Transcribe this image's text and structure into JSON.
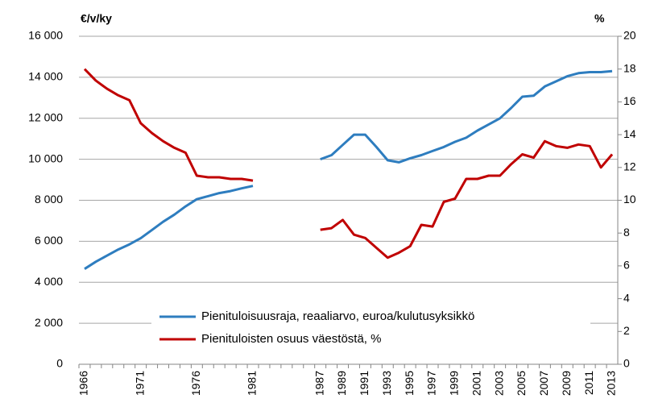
{
  "chart_data": {
    "type": "line",
    "y_label": "€/v/ky",
    "y2_label": "%",
    "categories": [
      "1966",
      null,
      null,
      null,
      null,
      "1971",
      null,
      null,
      null,
      null,
      "1976",
      null,
      null,
      null,
      null,
      "1981",
      null,
      null,
      null,
      null,
      null,
      "1987",
      null,
      "1989",
      null,
      "1991",
      null,
      "1993",
      null,
      "1995",
      null,
      "1997",
      null,
      "1999",
      null,
      "2001",
      null,
      "2003",
      null,
      "2005",
      null,
      "2007",
      null,
      "2009",
      null,
      "2011",
      null,
      "2013"
    ],
    "series": [
      {
        "name": "Pienituloisuusraja, reaaliarvo, euroa/kulutusyksikkö",
        "color": "#2e7dbf",
        "axis": "y",
        "values": [
          4650,
          5000,
          5300,
          5600,
          5850,
          6150,
          6550,
          6950,
          7300,
          7700,
          8050,
          8200,
          8350,
          8450,
          8580,
          8700,
          null,
          null,
          null,
          null,
          null,
          10000,
          10200,
          10700,
          11200,
          11200,
          10600,
          9950,
          9850,
          10050,
          10200,
          10400,
          10600,
          10850,
          11050,
          11400,
          11700,
          12000,
          12500,
          13050,
          13100,
          13550,
          13800,
          14050,
          14200,
          14250,
          14250,
          14300
        ]
      },
      {
        "name": "Pienituloisten osuus väestöstä, %",
        "color": "#c00000",
        "axis": "y2",
        "values": [
          18.0,
          17.3,
          16.8,
          16.4,
          16.1,
          14.7,
          14.1,
          13.6,
          13.2,
          12.9,
          11.5,
          11.4,
          11.4,
          11.3,
          11.3,
          11.2,
          null,
          null,
          null,
          null,
          null,
          8.2,
          8.3,
          8.8,
          7.9,
          7.7,
          7.1,
          6.5,
          6.8,
          7.2,
          8.5,
          8.4,
          9.9,
          10.1,
          11.3,
          11.3,
          11.5,
          11.5,
          12.2,
          12.8,
          12.6,
          13.6,
          13.3,
          13.2,
          13.4,
          13.3,
          12.0,
          12.8
        ]
      }
    ],
    "ylim": [
      0,
      16000
    ],
    "yticks": [
      0,
      {
        "value": 2000,
        "label": "2 000"
      },
      {
        "value": 4000,
        "label": "4 000"
      },
      {
        "value": 6000,
        "label": "6 000"
      },
      {
        "value": 8000,
        "label": "8 000"
      },
      {
        "value": 10000,
        "label": "10 000"
      },
      {
        "value": 12000,
        "label": "12 000"
      },
      {
        "value": 14000,
        "label": "14 000"
      },
      {
        "value": 16000,
        "label": "16 000"
      }
    ],
    "y2lim": [
      0,
      20
    ],
    "y2ticks": [
      0,
      2,
      4,
      6,
      8,
      10,
      12,
      14,
      16,
      18,
      20
    ],
    "grid": true,
    "legend": "bottom"
  }
}
